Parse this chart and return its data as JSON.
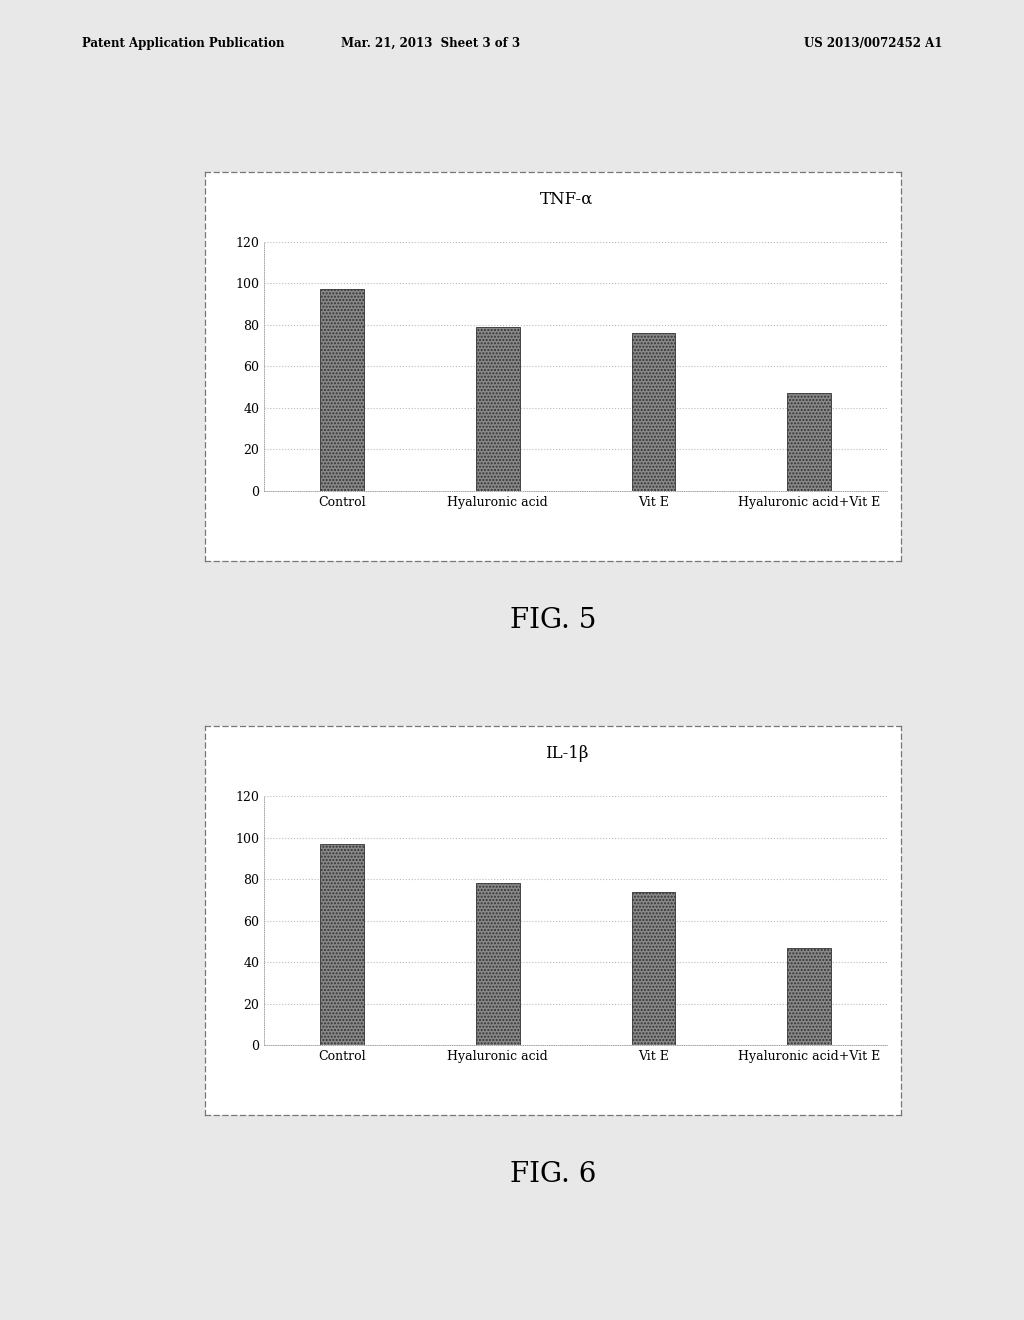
{
  "fig5": {
    "title": "TNF-α",
    "categories": [
      "Control",
      "Hyaluronic acid",
      "Vit E",
      "Hyaluronic acid+Vit E"
    ],
    "values": [
      97,
      79,
      76,
      47
    ],
    "ylim": [
      0,
      120
    ],
    "yticks": [
      0,
      20,
      40,
      60,
      80,
      100,
      120
    ],
    "fig_label": "FIG. 5"
  },
  "fig6": {
    "title": "IL-1β",
    "categories": [
      "Control",
      "Hyaluronic acid",
      "Vit E",
      "Hyaluronic acid+Vit E"
    ],
    "values": [
      97,
      78,
      74,
      47
    ],
    "ylim": [
      0,
      120
    ],
    "yticks": [
      0,
      20,
      40,
      60,
      80,
      100,
      120
    ],
    "fig_label": "FIG. 6"
  },
  "bar_color": "#888888",
  "bar_hatch": ".....",
  "background_color": "#ffffff",
  "grid_color": "#bbbbbb",
  "title_fontsize": 12,
  "tick_fontsize": 9,
  "fig_label_fontsize": 20,
  "page_background": "#e8e8e8",
  "header_left": "Patent Application Publication",
  "header_mid": "Mar. 21, 2013  Sheet 3 of 3",
  "header_right": "US 2013/0072452 A1"
}
